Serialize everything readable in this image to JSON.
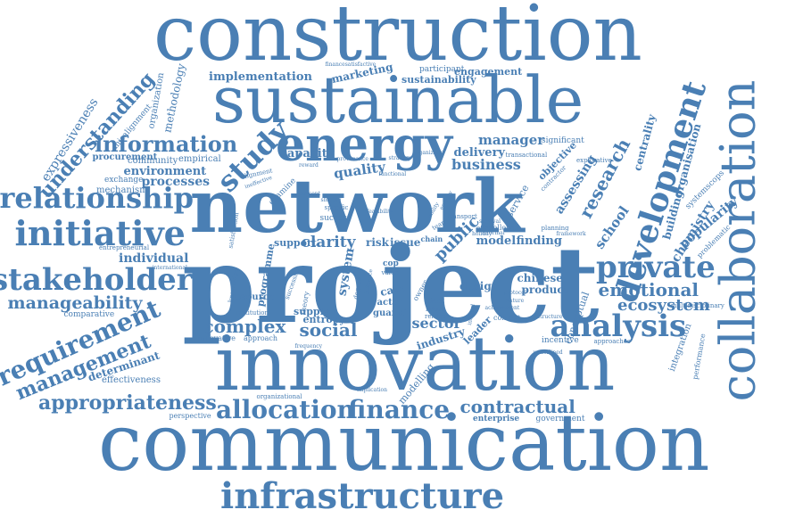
{
  "color": "#4a7fb4",
  "words": {
    "construction": "construction",
    "sustainable": "sustainable",
    "energy": "energy",
    "network": "network",
    "project": "project",
    "innovation": "innovation",
    "communication": "communication",
    "infrastructure": "infrastructure",
    "collaboration": "collaboration",
    "development": "development",
    "research": "research",
    "relationship": "relationship",
    "initiative": "initiative",
    "stakeholder": "stakeholder",
    "manageability": "manageability",
    "requirement": "requirement",
    "management": "management",
    "appropriateness": "appropriateness",
    "allocation": "allocation",
    "finance": "finance",
    "contractual": "contractual",
    "analysis": "analysis",
    "private": "private",
    "emotional": "emotional",
    "ecosystem": "ecosystem",
    "information": "information",
    "study": "study",
    "understanding": "understanding",
    "expressiveness": "expressiveness",
    "implementation": "implementation",
    "marketing": "marketing",
    "sustainability": "sustainability",
    "engagement": "engagement",
    "participant": "participant",
    "manager": "manager",
    "significant": "significant",
    "delivery": "delivery",
    "business": "business",
    "quality": "quality",
    "capacity": "capacity",
    "environment": "environment",
    "processes": "processes",
    "procurement": "procurement",
    "community": "community",
    "empirical": "empirical",
    "exchange": "exchange",
    "mechanism": "mechanism",
    "individual": "individual",
    "complex": "complex",
    "social": "social",
    "sector": "sector",
    "public": "public",
    "model": "model",
    "finding": "finding",
    "design": "design",
    "product": "product",
    "chinese": "chinese",
    "leader": "leader",
    "industry": "industry",
    "clarity": "clarity",
    "system": "system",
    "risk": "risk",
    "issue": "issue",
    "support": "support",
    "resource": "resource",
    "supply": "supply",
    "entropy": "entropy",
    "guanxi": "guanxi",
    "actor": "actor",
    "case": "case",
    "cop": "cop",
    "value": "value",
    "team": "team",
    "effect": "effect",
    "follower": "follower",
    "planning": "planning",
    "chain": "chain",
    "service": "service",
    "objective": "objective",
    "assessing": "assessing",
    "school": "school",
    "centrality": "centrality",
    "building": "building",
    "organisation": "organisation",
    "chemistry": "chemistry",
    "popularity": "popularity",
    "systemscops": "systemscops",
    "problematic": "problematic",
    "integration": "integration",
    "performance": "performance",
    "multidisciplinary": "multidisciplinary",
    "approaches": "approaches",
    "incentive": "incentive",
    "conceptual": "conceptual",
    "enterprise": "enterprise",
    "government": "government",
    "context": "context",
    "modelling": "modelling",
    "determinant": "determinant",
    "effectiveness": "effectiveness",
    "perspective": "perspective",
    "comparative": "comparative",
    "innovative": "innovative",
    "approach": "approach",
    "institution": "institution",
    "international": "international",
    "entrepreneurial": "entrepreneurial",
    "methodology": "methodology",
    "organization": "organization",
    "misalignment": "misalignment",
    "examine": "examine",
    "alignment": "alignment",
    "ineffective": "ineffective",
    "satisfaction": "satisfaction",
    "knowledge": "knowledge",
    "programme": "programme",
    "successful": "successful",
    "future": "future",
    "relation": "relation",
    "transactional": "transactional",
    "explorative": "explorative",
    "transport": "transport",
    "achievement": "achievement",
    "survival": "survival",
    "organizational": "organizational",
    "implication": "implication",
    "framework": "framework",
    "financesatisfactive": "financesatisfactive",
    "success": "success",
    "specific": "specific",
    "sharing": "sharing",
    "concept": "concept",
    "nature": "nature",
    "theory": "theory",
    "client": "client",
    "owner": "owner",
    "structure": "structure",
    "contractor": "contractor",
    "degree": "degree",
    "influence": "influence",
    "feasibility": "feasibility",
    "underlined": "underlined",
    "frequency": "frequency",
    "reward": "reward",
    "provenance": "provenance",
    "strategy": "strategy",
    "functional": "functional",
    "ability": "ability",
    "ecology": "ecology",
    "organizing": "organizing",
    "informal": "informal",
    "holiday": "holiday",
    "internal": "internal",
    "protocol": "protocol"
  }
}
